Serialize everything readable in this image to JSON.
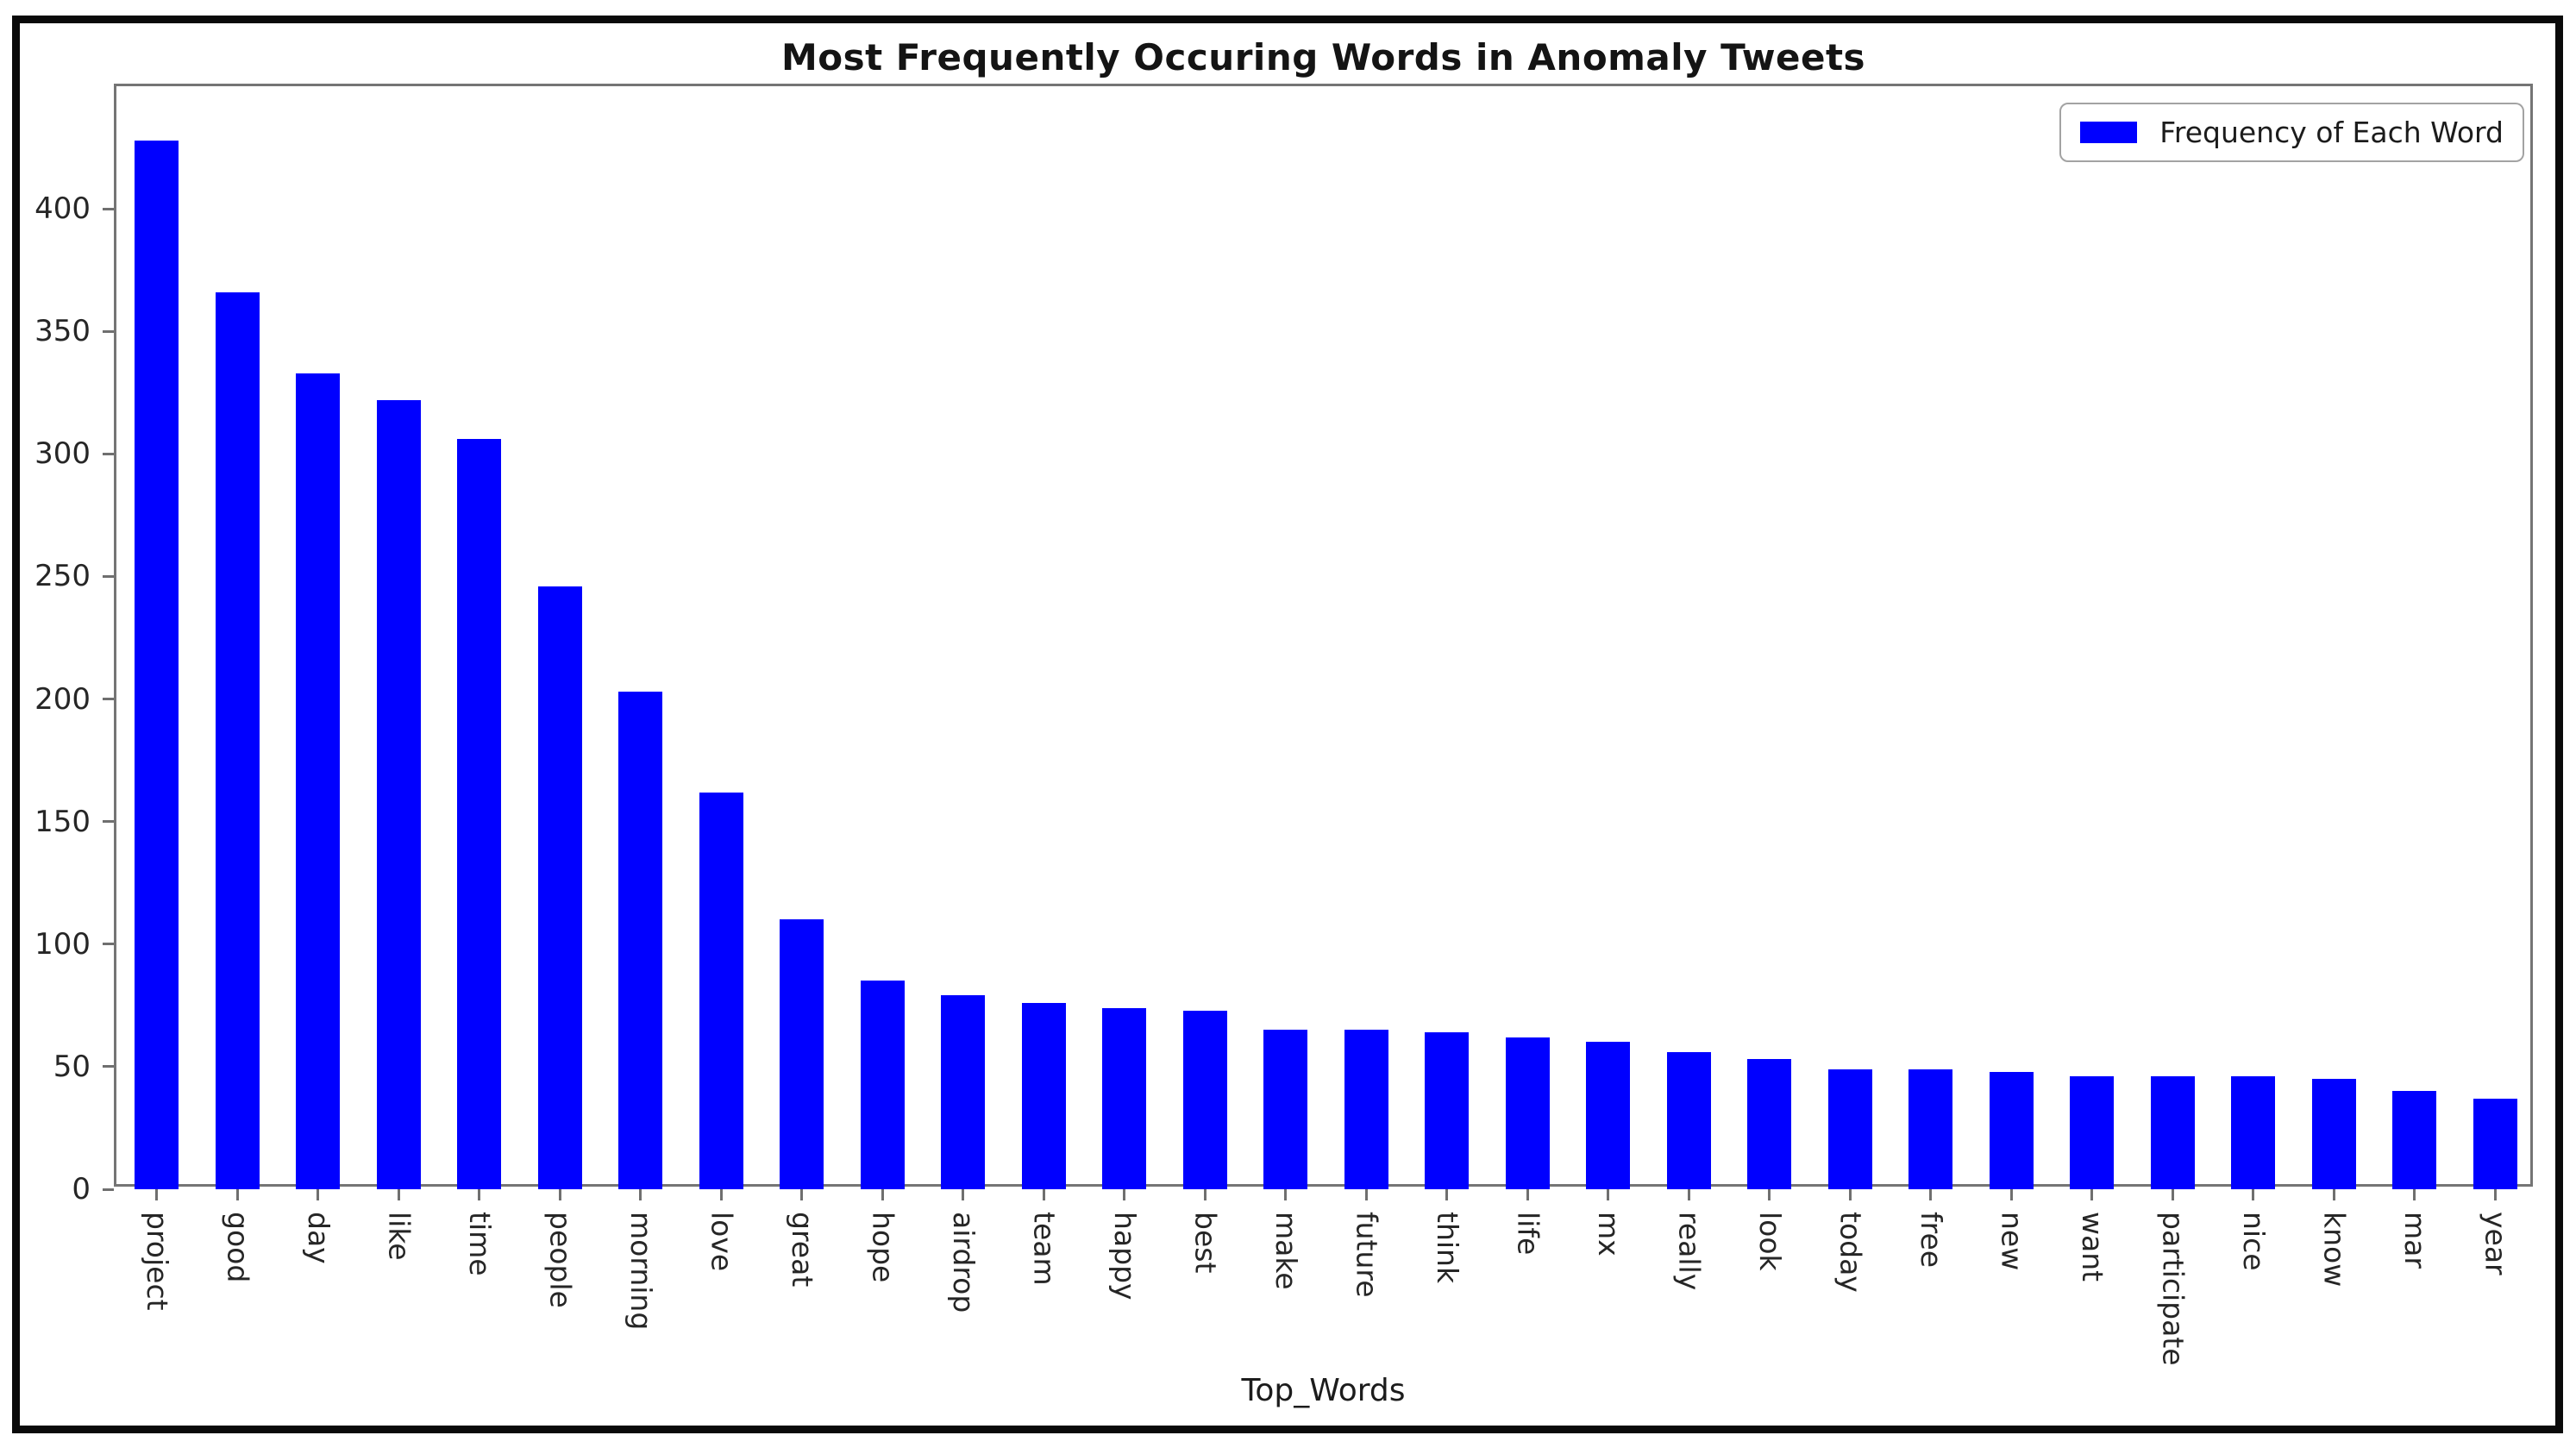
{
  "figure": {
    "frame_border_color": "#0a0a0a",
    "background_color": "#ffffff",
    "axis_color": "#757575",
    "text_color": "#1c1c1c"
  },
  "chart_data": {
    "type": "bar",
    "title": "Most Frequently Occuring Words in Anomaly Tweets",
    "xlabel": "Top_Words",
    "ylabel": "",
    "legend": {
      "label": "Frequency of Each Word",
      "position": "upper right"
    },
    "bar_color": "#0000ff",
    "grid": false,
    "ylim": [
      0,
      450
    ],
    "yticks": [
      0,
      50,
      100,
      150,
      200,
      250,
      300,
      350,
      400
    ],
    "xtick_rotation_deg": 90,
    "categories": [
      "project",
      "good",
      "day",
      "like",
      "time",
      "people",
      "morning",
      "love",
      "great",
      "hope",
      "airdrop",
      "team",
      "happy",
      "best",
      "make",
      "future",
      "think",
      "life",
      "mx",
      "really",
      "look",
      "today",
      "free",
      "new",
      "want",
      "participate",
      "nice",
      "know",
      "mar",
      "year"
    ],
    "values": [
      428,
      366,
      333,
      322,
      306,
      246,
      203,
      162,
      110,
      85,
      79,
      76,
      74,
      73,
      65,
      65,
      64,
      62,
      60,
      56,
      53,
      49,
      49,
      48,
      46,
      46,
      46,
      45,
      40,
      37
    ]
  }
}
